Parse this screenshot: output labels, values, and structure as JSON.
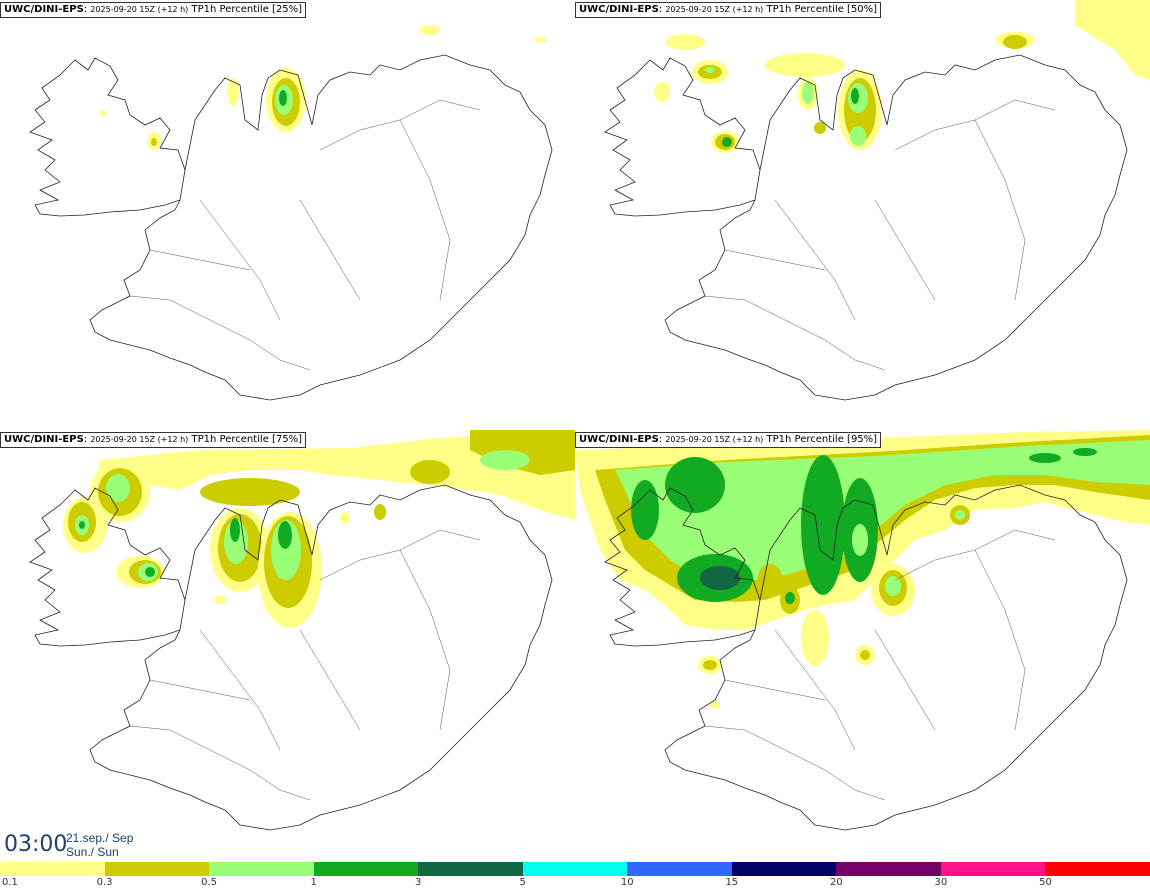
{
  "panels": [
    {
      "source": "UWC/DINI-EPS",
      "run": "2025-09-20 15Z (+12 h)",
      "field": "TP1h Percentile",
      "percentile": "[25%]"
    },
    {
      "source": "UWC/DINI-EPS",
      "run": "2025-09-20 15Z (+12 h)",
      "field": "TP1h Percentile",
      "percentile": "[50%]"
    },
    {
      "source": "UWC/DINI-EPS",
      "run": "2025-09-20 15Z (+12 h)",
      "field": "TP1h Percentile",
      "percentile": "[75%]"
    },
    {
      "source": "UWC/DINI-EPS",
      "run": "2025-09-20 15Z (+12 h)",
      "field": "TP1h Percentile",
      "percentile": "[95%]"
    }
  ],
  "valid_time": {
    "time": "03:00",
    "date_line1": "21.sep./ Sep",
    "date_line2": "Sun./ Sun"
  },
  "legend": {
    "colors": [
      "#ffff88",
      "#cccc00",
      "#99ff77",
      "#11aa22",
      "#116644",
      "#00ffee",
      "#3366ff",
      "#000066",
      "#770066",
      "#ff1188",
      "#ff0000"
    ],
    "ticks": [
      "0.1",
      "0.3",
      "0.5",
      "1",
      "3",
      "5",
      "10",
      "15",
      "20",
      "30",
      "50"
    ]
  }
}
